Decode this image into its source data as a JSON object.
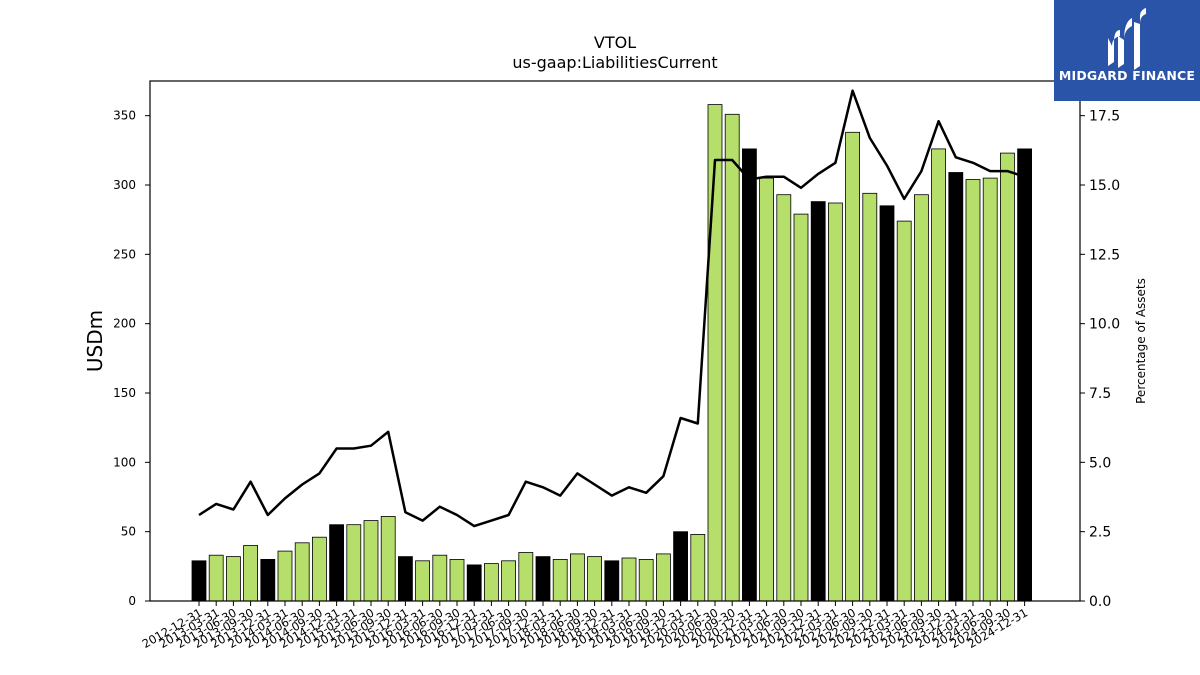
{
  "chart_data": {
    "type": "bar",
    "title": "VTOL",
    "subtitle": "us-gaap:LiabilitiesCurrent",
    "ylabel": "USDm",
    "y2label": "Percentage of Assets",
    "ylim": [
      0,
      375
    ],
    "y2lim": [
      0,
      18.75
    ],
    "yticks": [
      0,
      50,
      100,
      150,
      200,
      250,
      300,
      350
    ],
    "y2ticks": [
      "0.0",
      "2.5",
      "5.0",
      "7.5",
      "10.0",
      "12.5",
      "15.0",
      "17.5"
    ],
    "categories": [
      "2012-12-31",
      "2013-03-31",
      "2013-06-30",
      "2013-09-30",
      "2013-12-31",
      "2014-03-31",
      "2014-06-30",
      "2014-09-30",
      "2014-12-31",
      "2015-03-31",
      "2015-06-30",
      "2015-09-30",
      "2015-12-31",
      "2016-03-31",
      "2016-06-30",
      "2016-09-30",
      "2016-12-31",
      "2017-03-31",
      "2017-06-30",
      "2017-09-30",
      "2017-12-31",
      "2018-03-31",
      "2018-06-30",
      "2018-09-30",
      "2018-12-31",
      "2019-03-31",
      "2019-06-30",
      "2019-09-30",
      "2019-12-31",
      "2020-03-31",
      "2020-06-30",
      "2020-09-30",
      "2020-12-31",
      "2021-03-31",
      "2021-06-30",
      "2021-09-30",
      "2021-12-31",
      "2022-03-31",
      "2022-06-30",
      "2022-09-30",
      "2022-12-31",
      "2023-03-31",
      "2023-06-30",
      "2023-09-30",
      "2023-12-31",
      "2024-03-31",
      "2024-06-30",
      "2024-09-30",
      "2024-12-31"
    ],
    "series": [
      {
        "type": "bar",
        "values": [
          29,
          33,
          32,
          40,
          30,
          36,
          42,
          46,
          55,
          55,
          58,
          61,
          32,
          29,
          33,
          30,
          26,
          27,
          29,
          35,
          32,
          30,
          34,
          32,
          29,
          31,
          30,
          34,
          50,
          48,
          358,
          351,
          326,
          305,
          293,
          279,
          288,
          287,
          338,
          294,
          285,
          274,
          293,
          326,
          309,
          304,
          305,
          323,
          326
        ],
        "highlight": [
          0,
          4,
          8,
          12,
          16,
          20,
          24,
          28,
          32,
          36,
          40,
          44,
          48
        ],
        "colors": {
          "normal": "#b5df6a",
          "highlight": "#000000"
        }
      },
      {
        "type": "line",
        "axis": "right",
        "values": [
          3.1,
          3.5,
          3.3,
          4.3,
          3.1,
          3.7,
          4.2,
          4.6,
          5.5,
          5.5,
          5.6,
          6.1,
          3.2,
          2.9,
          3.4,
          3.1,
          2.7,
          2.9,
          3.1,
          4.3,
          4.1,
          3.8,
          4.6,
          4.2,
          3.8,
          4.1,
          3.9,
          4.5,
          6.6,
          6.4,
          15.9,
          15.9,
          15.2,
          15.3,
          15.3,
          14.9,
          15.4,
          15.8,
          18.4,
          16.7,
          15.7,
          14.5,
          15.5,
          17.3,
          16.0,
          15.8,
          15.5,
          15.5,
          15.3
        ],
        "color": "#000000"
      }
    ]
  },
  "logo": {
    "text": "MIDGARD FINANCE",
    "color": "#2a54a8"
  }
}
